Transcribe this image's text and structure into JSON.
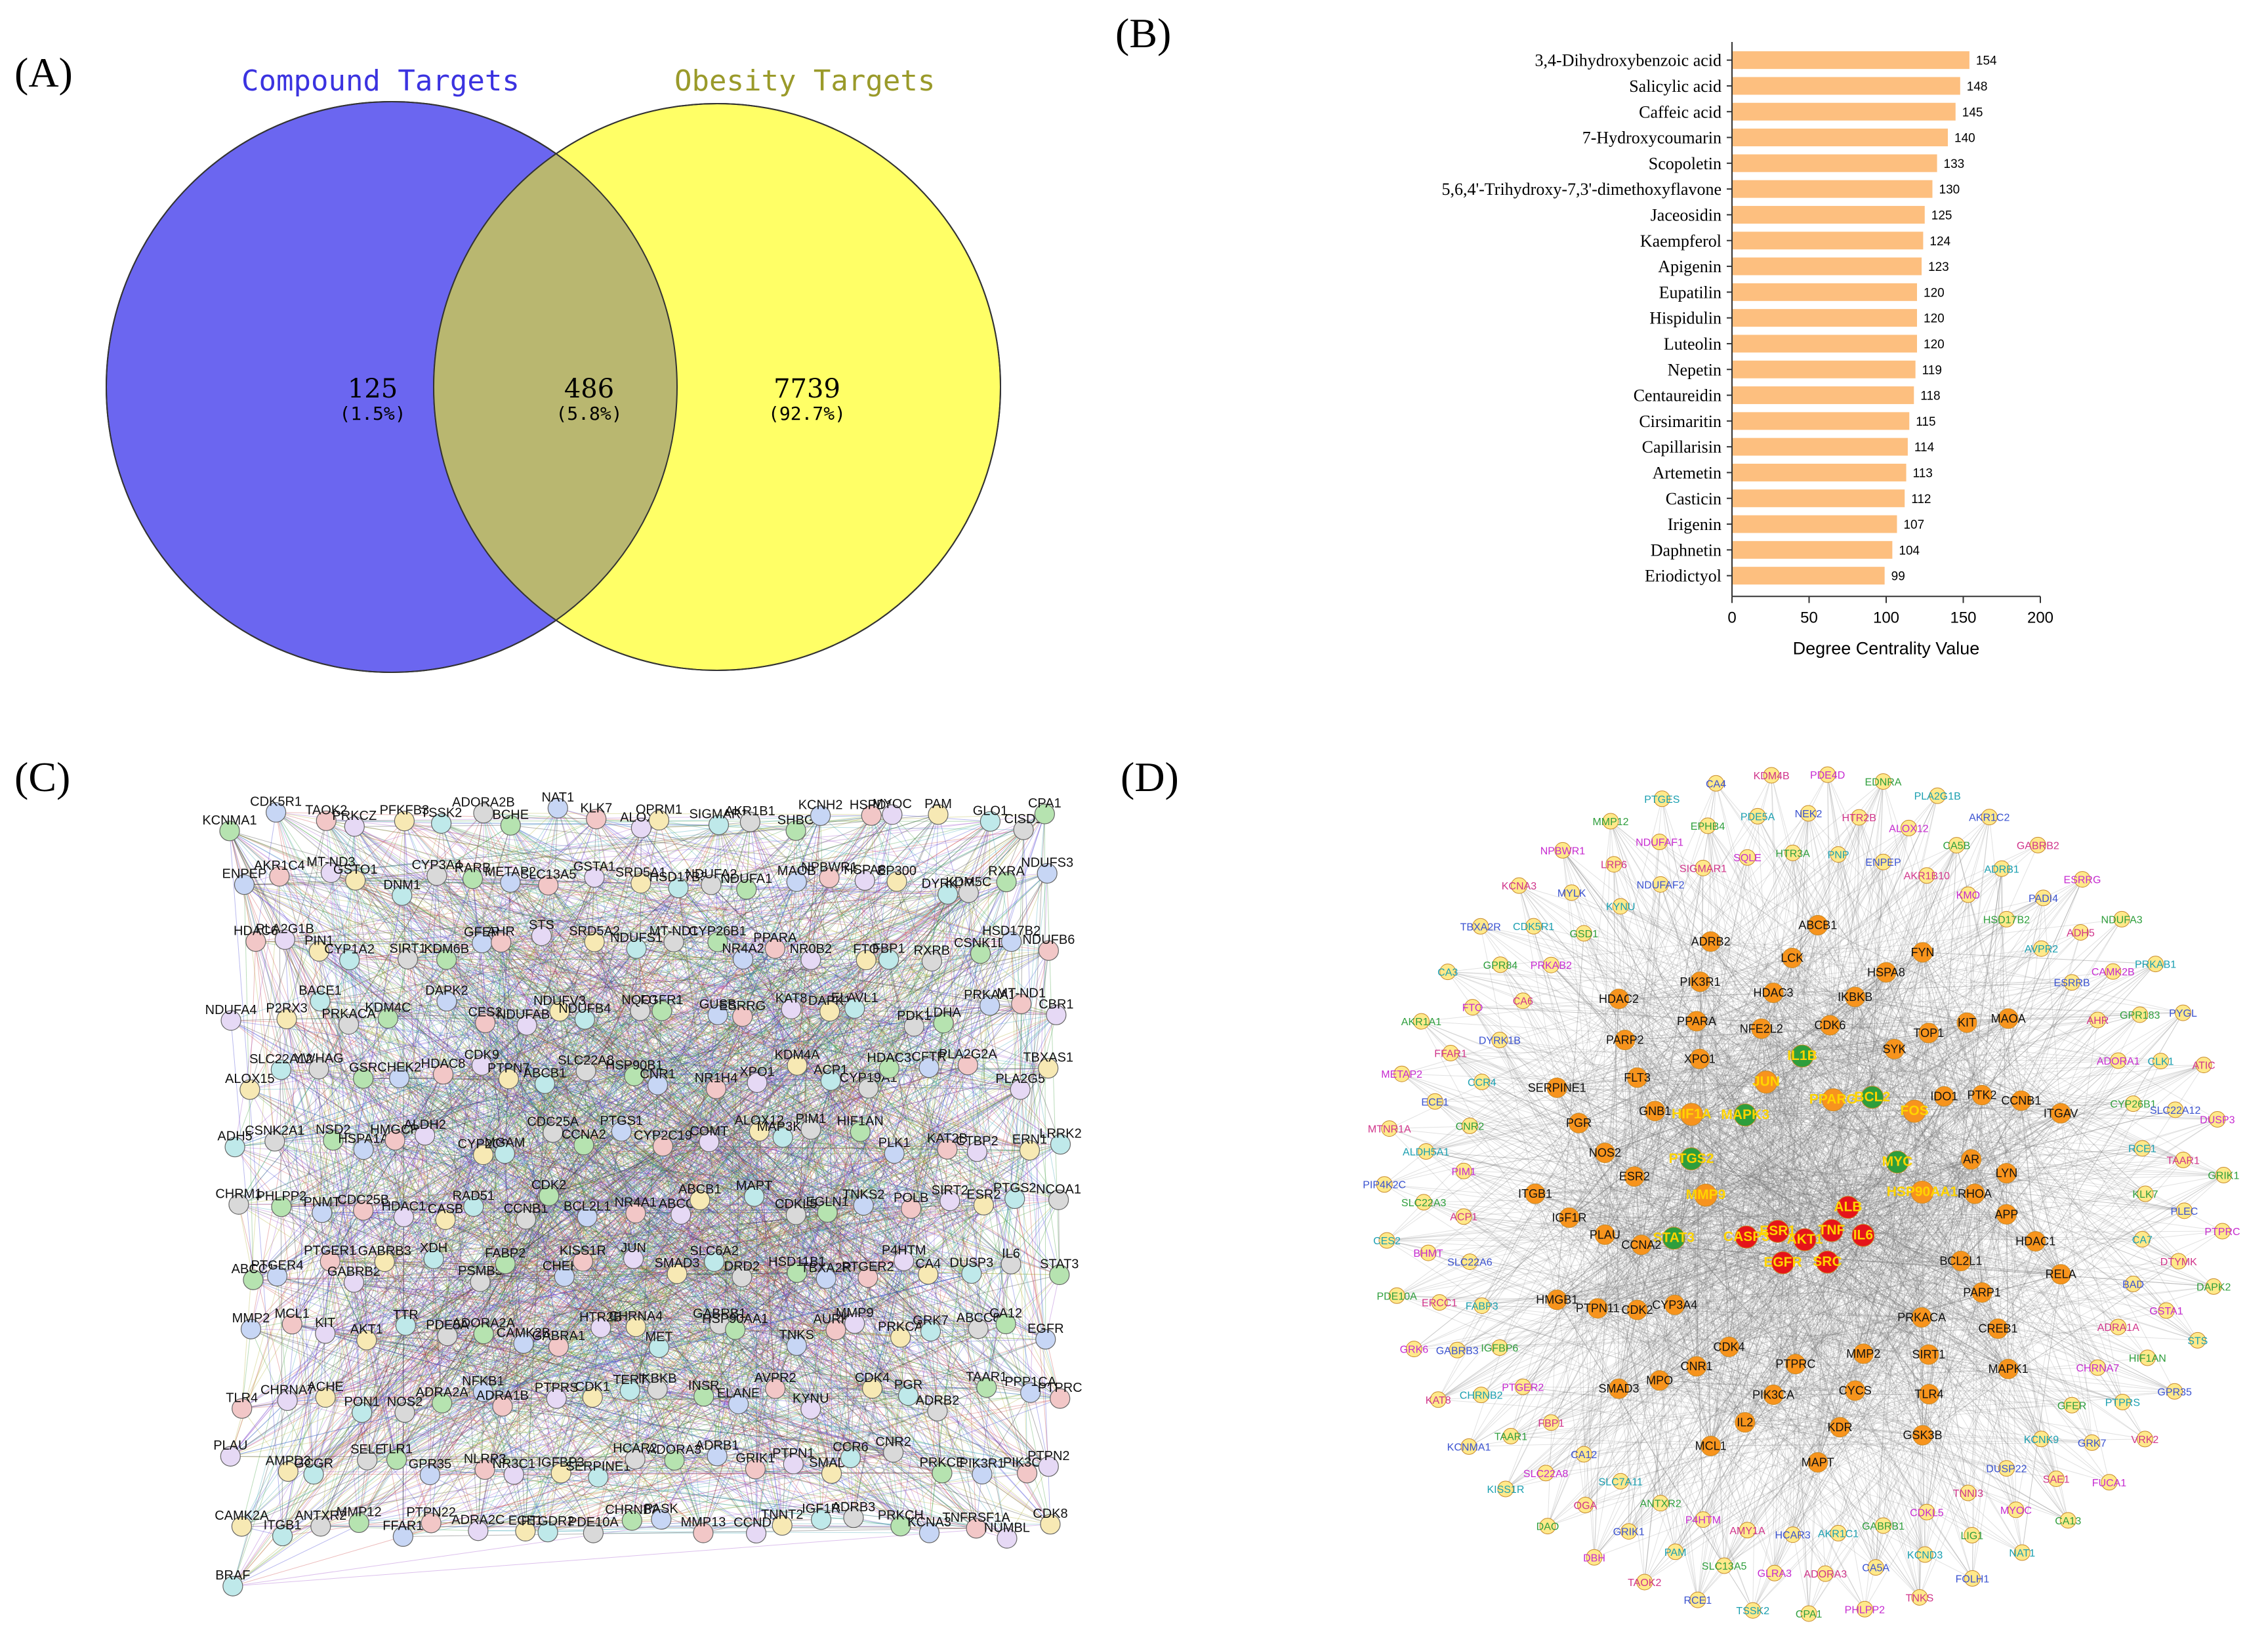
{
  "panels": {
    "a": "(A)",
    "b": "(B)",
    "c": "(C)",
    "d": "(D)"
  },
  "colors": {
    "compound": "#6b66f0",
    "obesity": "#ffff66",
    "overlap": "#b9b770",
    "compound_title": "#3b33e0",
    "obesity_title": "#9a9a2a",
    "bar": "#fdbf7f",
    "hub_red": "#e5141a",
    "hub_orange": "#f7931e",
    "hub_green": "#2e9e3c"
  },
  "venn": {
    "compound_label": "Compound Targets",
    "obesity_label": "Obesity Targets",
    "left": {
      "count": "125",
      "pct": "(1.5%)"
    },
    "middle": {
      "count": "486",
      "pct": "(5.8%)"
    },
    "right": {
      "count": "7739",
      "pct": "(92.7%)"
    }
  },
  "chart_data": [
    {
      "type": "bar",
      "orientation": "horizontal",
      "title": "",
      "xlabel": "Degree Centrality Value",
      "ylabel": "",
      "xlim": [
        0,
        200
      ],
      "xticks": [
        0,
        50,
        100,
        150,
        200
      ],
      "grid": false,
      "categories": [
        "3,4-Dihydroxybenzoic acid",
        "Salicylic acid",
        "Caffeic acid",
        "7-Hydroxycoumarin",
        "Scopoletin",
        "5,6,4'-Trihydroxy-7,3'-dimethoxyflavone",
        "Jaceosidin",
        "Kaempferol",
        "Apigenin",
        "Eupatilin",
        "Hispidulin",
        "Luteolin",
        "Nepetin",
        "Centaureidin",
        "Cirsimaritin",
        "Capillarisin",
        "Artemetin",
        "Casticin",
        "Irigenin",
        "Daphnetin",
        "Eriodictyol"
      ],
      "values": [
        154,
        148,
        145,
        140,
        133,
        130,
        125,
        124,
        123,
        120,
        120,
        120,
        119,
        118,
        115,
        114,
        113,
        112,
        107,
        104,
        99
      ]
    }
  ],
  "network_c": {
    "labels": [
      "KCNMA1",
      "CDK5R1",
      "TAOK2",
      "PRKCZ",
      "PFKFB3",
      "TSSK2",
      "ADORA2B",
      "BCHE",
      "NAT1",
      "KLK7",
      "ALOX5",
      "OPRM1",
      "SIGMAR1",
      "AKR1B1",
      "SHBG",
      "KCNH2",
      "HSPD1",
      "MYOC",
      "PAM",
      "GLO1",
      "CISD1",
      "CPA1",
      "ENPEP",
      "AKR1C4",
      "MT-ND3",
      "GSTO1",
      "DNM1",
      "CYP3A4",
      "RARB",
      "METAP2",
      "SLC13A5",
      "GSTA1",
      "SRD5A1",
      "HSD17B3",
      "NDUFA2",
      "NDUFA1",
      "MAOB",
      "NPBWR1",
      "HSPA8",
      "EP300",
      "DYRK1B",
      "KDM5C",
      "RXRA",
      "NDUFS3",
      "HDAC6",
      "PLA2G1B",
      "PIN1",
      "CYP1A2",
      "SIRT1",
      "KDM6B",
      "GFER",
      "AHR",
      "STS",
      "SRD5A2",
      "NDUFS1",
      "MT-ND1",
      "CYP26B1",
      "NR4A2",
      "PPARA",
      "NR0B2",
      "FTO",
      "FBP1",
      "RXRB",
      "CSNK1D",
      "HSD17B2",
      "NDUFB6",
      "NDUFA4",
      "P2RX3",
      "BACE1",
      "PRKACA",
      "KDM4C",
      "DAPK2",
      "CES2",
      "NDUFAB1",
      "NDUFV3",
      "NDUFB4",
      "NQO1",
      "FGFR1",
      "GUSB",
      "ESRRG",
      "KAT8",
      "DAPK1",
      "ELAVL1",
      "PDK1",
      "LDHA",
      "PRKAA1",
      "MT-ND1",
      "CBR1",
      "ALOX15",
      "SLC22A12",
      "YWHAG",
      "GSR",
      "CHEK2",
      "HDAC8",
      "CDK9",
      "PTPN7",
      "ABCB1",
      "SLC22A8",
      "HSP90B1",
      "CNR1",
      "NR1H4",
      "XPO1",
      "KDM4A",
      "ACP1",
      "CYP19A1",
      "HDAC3",
      "CFTR",
      "PLA2G2A",
      "PLA2G5",
      "TBXAS1",
      "ADH5",
      "CSNK2A1",
      "NSD2",
      "HSPA1A",
      "HMGCR",
      "ALDH2",
      "CYP2C9",
      "MGAM",
      "CDC25A",
      "CCNA2",
      "PTGS1",
      "CYP2C19",
      "COMT",
      "ALOX12",
      "MAP3K8",
      "PIM1",
      "HIF1AN",
      "PLK1",
      "KAT2B",
      "CTBP2",
      "ERN1",
      "LRRK2",
      "CHRM1",
      "PHLPP2",
      "PNMT",
      "CDC25B",
      "HDAC1",
      "CASB",
      "RAD51",
      "CCNB1",
      "CDK2",
      "BCL2L1",
      "NR4A1",
      "ABCG2",
      "ABCB1",
      "MAPT",
      "CDKL5",
      "EGLN1",
      "TNKS2",
      "POLB",
      "SIRT2",
      "ESR2",
      "PTGS2",
      "NCOA1",
      "ABCC1",
      "PTGER4",
      "PTGER1",
      "GABRB2",
      "GABRB3",
      "XDH",
      "PSMB5",
      "FABP2",
      "CHEK1",
      "KISS1R",
      "JUN",
      "SMAD3",
      "SLC6A2",
      "DRD2",
      "HSD11B1",
      "TBXA2R",
      "PTGER2",
      "P4HTM",
      "CA4",
      "DUSP3",
      "IL6",
      "STAT3",
      "MMP2",
      "MCL1",
      "KIT",
      "AKT1",
      "TTR",
      "PDE5A",
      "ADORA2A",
      "CAMK2B",
      "GABRA1",
      "HTR2B",
      "CHRNA4",
      "MET",
      "GABRB1",
      "HSP90AA1",
      "TNKS",
      "AURKB",
      "MMP9",
      "PRKCA",
      "GRK7",
      "ABCC8",
      "CA12",
      "EGFR",
      "TLR4",
      "CHRNA7",
      "ACHE",
      "PON1",
      "NOS2",
      "ADRA2A",
      "NFKB1",
      "ADRA1B",
      "PTPRS",
      "CDK1",
      "TERT",
      "IKBKB",
      "INSR",
      "ELANE",
      "AVPR2",
      "KYNU",
      "CDK4",
      "PGR",
      "ADRB2",
      "TAAR1",
      "PPP1CA",
      "PTPRC",
      "PLAU",
      "AMPD3",
      "GCGR",
      "SELE",
      "TLR1",
      "GPR35",
      "NLRP3",
      "NR3C1",
      "IGFBP3",
      "SERPINE1",
      "HCAR2",
      "ADORA3",
      "ADRB1",
      "GRIK1",
      "PTPN1",
      "SMAD3",
      "CCR6",
      "CNR2",
      "PRKCE",
      "PIK3R1",
      "PIK3CG",
      "PTPN2",
      "CAMK2A",
      "ITGB1",
      "ANTXR2",
      "MMP12",
      "FFAR1",
      "PTPN22",
      "ADRA2C",
      "ECE1",
      "PTGDR2",
      "PDE10A",
      "CHRNB2",
      "PASK",
      "MMP13",
      "CCND1",
      "TNNT2",
      "IGF1R",
      "ADRB3",
      "PRKCH",
      "KCNA3",
      "TNFRSF1A",
      "NUMBL",
      "CDK8",
      "BRAF"
    ]
  },
  "network_d": {
    "hub_labels": [
      "ALB",
      "IL6",
      "TNF",
      "SRC",
      "AKT1",
      "EGFR",
      "ESR1",
      "CASP3",
      "STAT3",
      "MMP9",
      "PTGS2",
      "HIF1A",
      "MAPK3",
      "JUN",
      "IL1B",
      "PPARG",
      "BCL2",
      "FOS",
      "MYC",
      "HSP90AA1"
    ],
    "mid_labels": [
      "RHOA",
      "APP",
      "HDAC1",
      "RELA",
      "BCL2L1",
      "PARP1",
      "CREB1",
      "MAPK1",
      "PRKACA",
      "SIRT1",
      "TLR4",
      "GSK3B",
      "MMP2",
      "CYCS",
      "KDR",
      "MAPT",
      "PTPRC",
      "PIK3CA",
      "IL2",
      "MCL1",
      "CDK4",
      "CNR1",
      "MPO",
      "SMAD3",
      "CYP3A4",
      "CDK2",
      "PTPN11",
      "HMGB1",
      "CCNA2",
      "PLAU",
      "IGF1R",
      "ITGB1",
      "ESR2",
      "NOS2",
      "PGR",
      "SERPINE1",
      "GNB1",
      "FLT3",
      "PARP2",
      "HDAC2",
      "XPO1",
      "PPARA",
      "PIK3R1",
      "ADRB2",
      "NFE2L2",
      "HDAC3",
      "LCK",
      "ABCB1",
      "CDK6",
      "IKBKB",
      "HSPA8",
      "FYN",
      "SYK",
      "TOP1",
      "KIT",
      "MAOA",
      "IDO1",
      "PTK2",
      "CCNB1",
      "ITGAV",
      "AR",
      "LYN"
    ],
    "outer_labels": [
      "KLK7",
      "PLEC",
      "PTPRC",
      "CA7",
      "DTYMK",
      "DAPK2",
      "BAD",
      "GSTA1",
      "STS",
      "ADRA1A",
      "HIF1AN",
      "GPR35",
      "CHRNA7",
      "PTPRS",
      "VRK2",
      "GFER",
      "GRK7",
      "FUCA1",
      "KCNK9",
      "SAE1",
      "CA13",
      "DUSP22",
      "MYOC",
      "NAT1",
      "TNNI3",
      "LIG1",
      "FOLH1",
      "CDKL5",
      "KCND3",
      "TNKS",
      "GABRB1",
      "CA5A",
      "PHLPP2",
      "AKR1C1",
      "ADORA3",
      "CPA1",
      "HCAR3",
      "GLRA3",
      "TSSK2",
      "AMY1A",
      "SLC13A5",
      "RCE1",
      "P4HTM",
      "PAM",
      "TAOK2",
      "ANTXR2",
      "GRIK1",
      "DBH",
      "SLC7A11",
      "OGA",
      "DAO",
      "CA12",
      "SLC22A8",
      "KISS1R",
      "FBP1",
      "TAAR1",
      "KCNMA1",
      "PTGER2",
      "CHRNB2",
      "KAT8",
      "IGFBP6",
      "GABRB3",
      "GRK6",
      "FABP3",
      "ERCC1",
      "PDE10A",
      "SLC22A6",
      "BHMT",
      "CES2",
      "ACP1",
      "SLC22A3",
      "PIP4K2C",
      "PIM1",
      "ALDH5A1",
      "MTNR1A",
      "CNR2",
      "ECE1",
      "METAP2",
      "CCR4",
      "FFAR1",
      "AKR1A1",
      "DYRK1B",
      "FTO",
      "CA3",
      "CA6",
      "GPR84",
      "TBXA2R",
      "PRKAB2",
      "CDK5R1",
      "KCNA3",
      "GSD1",
      "MYLK",
      "NPBWR1",
      "KYNU",
      "LRP6",
      "MMP12",
      "NDUFAF2",
      "NDUFAF1",
      "PTGES",
      "SIGMAR1",
      "EPHB4",
      "CA4",
      "SQLE",
      "PDE5A",
      "KDM4B",
      "HTR3A",
      "NEK2",
      "PDE4D",
      "PNP",
      "HTR2B",
      "EDNRA",
      "ENPEP",
      "ALOX12",
      "PLA2G1B",
      "AKR1B10",
      "CA5B",
      "AKR1C2",
      "KMO",
      "ADRB1",
      "GABRB2",
      "HSD17B2",
      "PADI4",
      "ESRRG",
      "AVPR2",
      "ADH5",
      "NDUFA3",
      "ESRRB",
      "CAMK2B",
      "PRKAB1",
      "AHR",
      "GPR183",
      "PYGL",
      "ADORA1",
      "CLK1",
      "ATIC",
      "CYP26B1",
      "SLC22A12",
      "DUSP3",
      "RCE1",
      "TAAR1",
      "GRIK1"
    ]
  }
}
